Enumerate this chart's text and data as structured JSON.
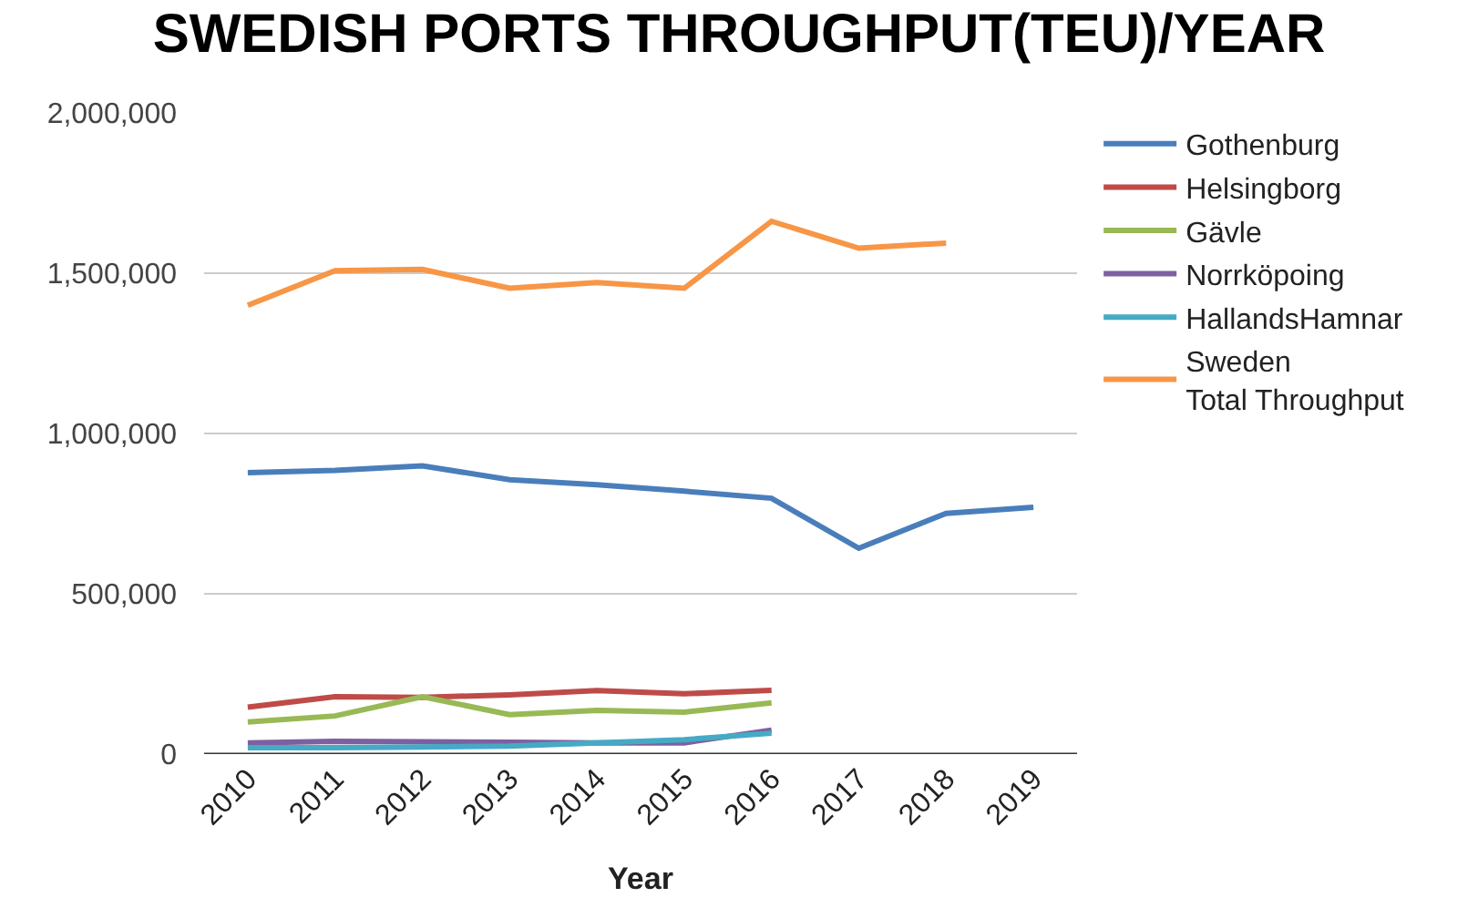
{
  "chart_data": {
    "type": "line",
    "title": "SWEDISH PORTS THROUGHPUT(TEU)/YEAR",
    "xlabel": "Year",
    "categories": [
      "2010",
      "2011",
      "2012",
      "2013",
      "2014",
      "2015",
      "2016",
      "2017",
      "2018",
      "2019"
    ],
    "series": [
      {
        "name": "Gothenburg",
        "color": "#4a7ebb",
        "values": [
          878000,
          885000,
          899000,
          856000,
          840000,
          820000,
          798000,
          642000,
          751000,
          770000
        ]
      },
      {
        "name": "Helsingborg",
        "color": "#be4b48",
        "values": [
          146000,
          179000,
          177000,
          185000,
          198000,
          188000,
          199000,
          null,
          null,
          null
        ]
      },
      {
        "name": "Gävle",
        "color": "#98b954",
        "values": [
          100000,
          119000,
          179000,
          123000,
          136000,
          131000,
          160000,
          null,
          null,
          null
        ]
      },
      {
        "name": "Norrköpoing",
        "color": "#7d60a0",
        "values": [
          35000,
          40000,
          38000,
          37000,
          35000,
          35000,
          75000,
          null,
          null,
          null
        ]
      },
      {
        "name": "HallandsHamnar",
        "color": "#46aac5",
        "values": [
          20000,
          20000,
          22000,
          25000,
          35000,
          45000,
          65000,
          null,
          null,
          null
        ]
      },
      {
        "name": "Sweden\nTotal Throughput",
        "color": "#f79646",
        "values": [
          1400000,
          1508000,
          1512000,
          1453000,
          1471000,
          1453000,
          1662000,
          1578000,
          1594000,
          null
        ]
      }
    ],
    "ylim": [
      0,
      2000000
    ],
    "yticks": [
      {
        "value": 0,
        "label": "0"
      },
      {
        "value": 500000,
        "label": "500,000"
      },
      {
        "value": 1000000,
        "label": "1,000,000"
      },
      {
        "value": 1500000,
        "label": "1,500,000"
      },
      {
        "value": 2000000,
        "label": "2,000,000"
      }
    ],
    "grid": "y",
    "legend": "right",
    "marker": "none",
    "line_style": "solid"
  }
}
